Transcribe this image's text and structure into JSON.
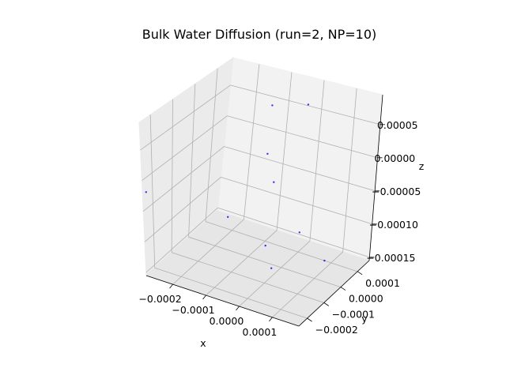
{
  "chart_data": {
    "type": "scatter",
    "title": "Bulk Water Diffusion (run=2, NP=10)",
    "xlabel": "x",
    "ylabel": "y",
    "zlabel": "z",
    "xlim": [
      -0.00028,
      0.00018
    ],
    "ylim": [
      -0.00025,
      0.00017
    ],
    "zlim": [
      -0.000155,
      9.5e-05
    ],
    "xticks": [
      -0.0002,
      -0.0001,
      0.0,
      0.0001
    ],
    "xtick_labels": [
      "−0.0002",
      "−0.0001",
      "0.0000",
      "0.0001"
    ],
    "yticks": [
      -0.0002,
      -0.0001,
      0.0,
      0.0001
    ],
    "ytick_labels": [
      "−0.0002",
      "−0.0001",
      "0.0000",
      "0.0001"
    ],
    "zticks": [
      -0.00015,
      -0.0001,
      -5e-05,
      0.0,
      5e-05
    ],
    "ztick_labels": [
      "−0.00015",
      "−0.00010",
      "−0.00005",
      "0.00000",
      "0.00005"
    ],
    "grid": true,
    "point_color": "#0000ff",
    "points": [
      {
        "x": -3e-05,
        "y": 0.00015,
        "z": 6e-05
      },
      {
        "x": -0.00012,
        "y": 0.00012,
        "z": 5.5e-05
      },
      {
        "x": -9e-05,
        "y": 6e-05,
        "z": 0.0
      },
      {
        "x": -5e-05,
        "y": 3e-05,
        "z": -3e-05
      },
      {
        "x": -0.000275,
        "y": -0.00024,
        "z": -2e-05
      },
      {
        "x": -0.00015,
        "y": -3e-05,
        "z": -9e-05
      },
      {
        "x": 5e-06,
        "y": 9e-05,
        "z": -0.00012
      },
      {
        "x": -4e-05,
        "y": -2e-05,
        "z": -0.00012
      },
      {
        "x": 0.0,
        "y": -6e-05,
        "z": -0.00014
      },
      {
        "x": 8e-05,
        "y": 0.0001,
        "z": -0.000155
      }
    ]
  }
}
